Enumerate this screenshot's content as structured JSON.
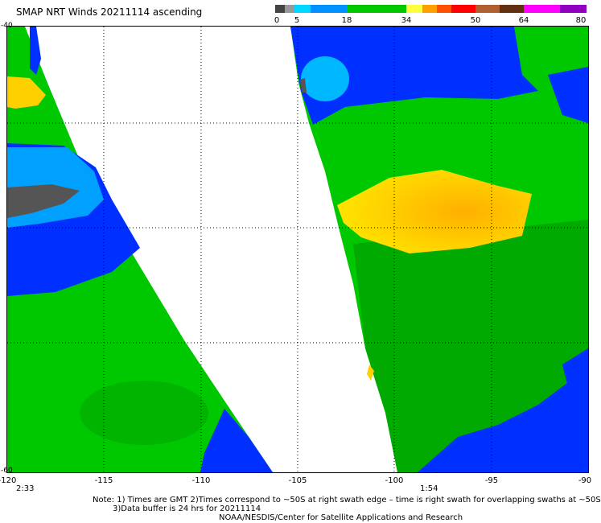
{
  "header": {
    "title": "SMAP NRT Winds 20211114 ascending"
  },
  "colorbar": {
    "labels": [
      "0",
      "5",
      "18",
      "34",
      "50",
      "64",
      "80"
    ],
    "segments": [
      "#444444",
      "#909090",
      "#00a0ff",
      "#0030ff",
      "#00c800",
      "#ffff00",
      "#ff8000",
      "#ff0000",
      "#a05000",
      "#600000",
      "#ff00ff",
      "#8000c0"
    ]
  },
  "map": {
    "x_ticks": [
      "-120",
      "-115",
      "-110",
      "-105",
      "-100",
      "-95",
      "-90"
    ],
    "y_labels_visible": [
      "-40",
      "-60"
    ],
    "colors": {
      "green": "#00c800",
      "darkgreen": "#00aa00",
      "blue": "#0030ff",
      "lightblue": "#00b0ff",
      "yellow": "#ffd000",
      "gray": "#555555"
    }
  },
  "times": {
    "left": "2:33",
    "right": "1:54"
  },
  "notes": {
    "line1": "Note: 1) Times are GMT 2)Times correspond to ~50S at right swath edge – time is right swath for overlapping swaths at ~50S",
    "line2": "3)Data buffer is 24 hrs for 20211114",
    "line3": "NOAA/NESDIS/Center for Satellite Applications and Research"
  }
}
